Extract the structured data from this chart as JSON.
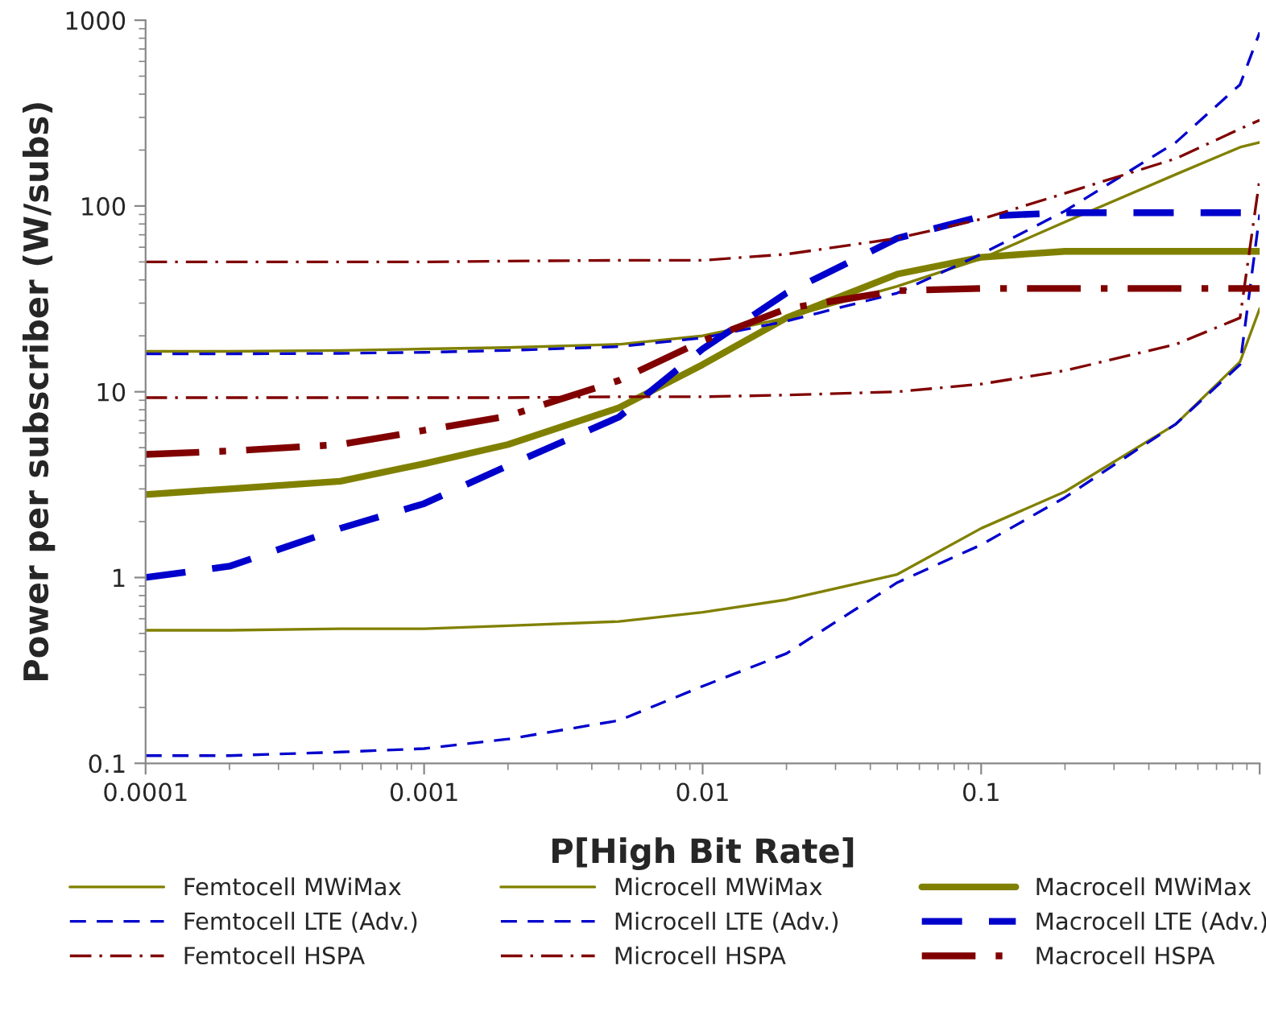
{
  "chart_data": {
    "type": "line",
    "xlabel": "P[High Bit Rate]",
    "ylabel": "Power per subscriber (W/subs)",
    "log": "xy",
    "grid": false,
    "legend": "bottom",
    "marker": "none",
    "x": [
      0.0001,
      0.0002,
      0.0005,
      0.001,
      0.002,
      0.005,
      0.01,
      0.02,
      0.05,
      0.1,
      0.2,
      0.5,
      0.85,
      1
    ],
    "xlim": [
      0.0001,
      1
    ],
    "xticks": [
      {
        "value": 0.0001,
        "label": "0.0001"
      },
      {
        "value": 0.001,
        "label": "0.001"
      },
      {
        "value": 0.01,
        "label": "0.01"
      },
      {
        "value": 0.1,
        "label": "0.1"
      },
      {
        "value": 1,
        "label": null
      }
    ],
    "ylim": [
      0.1,
      1000
    ],
    "yticks": [
      {
        "value": 0.1,
        "label": "0.1"
      },
      1,
      10,
      100,
      1000
    ],
    "series": [
      {
        "name": "Femtocell MWiMax",
        "color": "#808000",
        "line_style": "solid",
        "values": [
          0.52,
          0.52,
          0.53,
          0.53,
          0.55,
          0.58,
          0.65,
          0.76,
          1.04,
          1.84,
          2.9,
          6.7,
          14.5,
          28
        ]
      },
      {
        "name": "Microcell MWiMax",
        "color": "#808000",
        "line_style": "solid",
        "values": [
          16.5,
          16.5,
          16.7,
          17,
          17.3,
          18,
          20,
          25,
          37,
          52,
          82,
          148,
          207,
          220
        ]
      },
      {
        "name": "Macrocell MWiMax",
        "color": "#808000",
        "line_style": "solid",
        "values": [
          2.8,
          3.0,
          3.3,
          4.1,
          5.2,
          8.2,
          14,
          25,
          43,
          53,
          57,
          57,
          57,
          57
        ]
      },
      {
        "name": "Femtocell LTE (Adv.)",
        "color": "#0000cc",
        "line_style": "dashed",
        "values": [
          0.11,
          0.11,
          0.115,
          0.12,
          0.135,
          0.17,
          0.26,
          0.39,
          0.94,
          1.5,
          2.7,
          6.7,
          14,
          90
        ]
      },
      {
        "name": "Microcell LTE (Adv.)",
        "color": "#0000cc",
        "line_style": "dashed",
        "values": [
          16,
          16,
          16.1,
          16.3,
          16.7,
          17.5,
          19.5,
          24,
          34,
          55,
          94,
          220,
          450,
          860
        ]
      },
      {
        "name": "Macrocell LTE (Adv.)",
        "color": "#0000cc",
        "line_style": "dashed",
        "values": [
          1.0,
          1.15,
          1.84,
          2.5,
          4.0,
          7.3,
          17,
          34,
          67,
          88,
          92,
          92,
          92,
          92
        ]
      },
      {
        "name": "Femtocell HSPA",
        "color": "#800000",
        "line_style": "dashdot",
        "values": [
          9.3,
          9.3,
          9.3,
          9.3,
          9.3,
          9.4,
          9.4,
          9.6,
          10,
          11,
          13,
          18,
          25,
          140
        ]
      },
      {
        "name": "Microcell HSPA",
        "color": "#800000",
        "line_style": "dashdot",
        "values": [
          50,
          50,
          50,
          50,
          50.5,
          51,
          51,
          55,
          67,
          85,
          117,
          180,
          260,
          290
        ]
      },
      {
        "name": "Macrocell HSPA",
        "color": "#800000",
        "line_style": "dashdot",
        "values": [
          4.6,
          4.8,
          5.2,
          6.2,
          7.4,
          11.5,
          18.8,
          28,
          35,
          36,
          36,
          36,
          36,
          36
        ]
      }
    ]
  }
}
